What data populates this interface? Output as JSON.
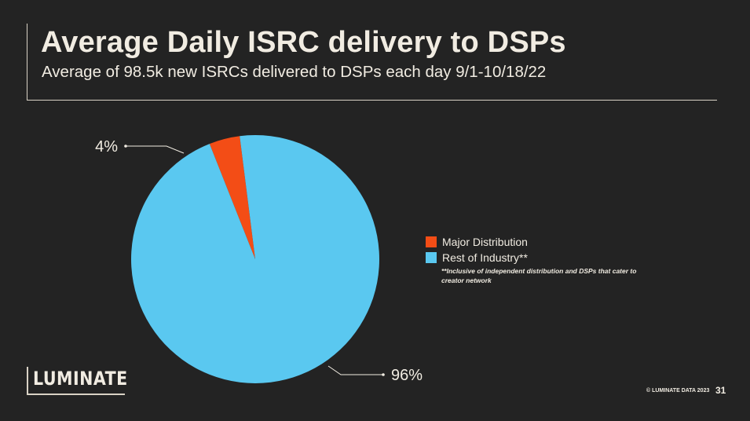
{
  "slide": {
    "title": "Average Daily ISRC delivery to DSPs",
    "subtitle": "Average of 98.5k new ISRCs delivered to DSPs each day 9/1-10/18/22",
    "legend_note": "**Inclusive of independent distribution and DSPs that cater to creator network",
    "logo_text": "LUMINATE",
    "copyright": "© LUMINATE DATA 2023",
    "page_number": "31"
  },
  "chart_data": {
    "type": "pie",
    "title": "Average Daily ISRC delivery to DSPs",
    "slices": [
      {
        "label": "Major Distribution",
        "value": 4,
        "display": "4%",
        "color": "#f34d16"
      },
      {
        "label": "Rest of Industry**",
        "value": 96,
        "display": "96%",
        "color": "#5ac8f0"
      }
    ],
    "legend_position": "right"
  }
}
